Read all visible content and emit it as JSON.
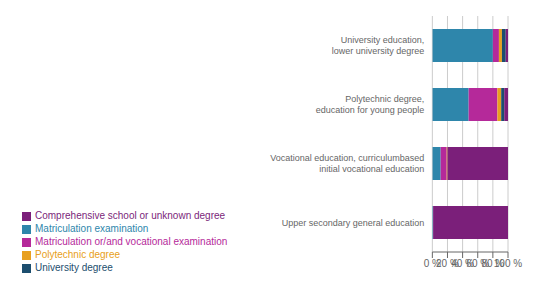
{
  "chart_data": {
    "type": "bar",
    "orientation": "horizontal",
    "stacked": true,
    "categories": [
      "Upper secondary general education",
      "Vocational education, curriculumbased\ninitial vocational education",
      "Polytechnic degree,\neducation for young people",
      "University education,\nlower university degree"
    ],
    "series": [
      {
        "name": "Matriculation examination",
        "color": "#2E86AB",
        "values": [
          1,
          11,
          48,
          80
        ]
      },
      {
        "name": "Matriculation or/and vocational examination",
        "color": "#B5299A",
        "values": [
          0,
          8,
          38,
          8
        ]
      },
      {
        "name": "Polytechnic degree",
        "color": "#E8A020",
        "values": [
          0,
          1,
          5,
          4
        ]
      },
      {
        "name": "University degree",
        "color": "#1C4E6E",
        "values": [
          0,
          0,
          4,
          5
        ]
      },
      {
        "name": "Comprehensive school or unknown degree",
        "color": "#7B1F7A",
        "values": [
          99,
          80,
          5,
          3
        ]
      }
    ],
    "xlim": [
      0,
      100
    ],
    "xticks": [
      {
        "value": 0,
        "label": "0 %"
      },
      {
        "value": 20,
        "label": "20 %"
      },
      {
        "value": 40,
        "label": "40 %"
      },
      {
        "value": 60,
        "label": "60 %"
      },
      {
        "value": 80,
        "label": "80 %"
      },
      {
        "value": 100,
        "label": "100 %"
      }
    ],
    "grid": true,
    "legend": "lower left"
  }
}
